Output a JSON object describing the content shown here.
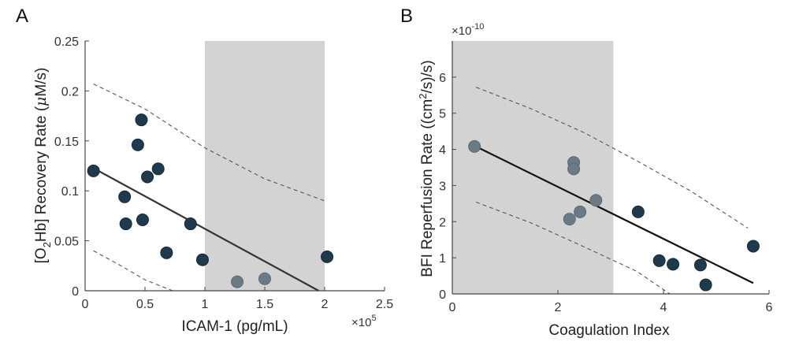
{
  "chart_data": [
    {
      "panel_label": "A",
      "type": "scatter",
      "xlabel": "ICAM-1 (pg/mL)",
      "ylabel": "[O2Hb] Recovery Rate (μM/s)",
      "ylabel_parts": {
        "pre": "[O",
        "sub": "2",
        "post": "Hb] Recovery Rate (",
        "mu": "μ",
        "unit": "M/s)"
      },
      "x_scale": {
        "base": "×10",
        "exp": "5"
      },
      "xlim": [
        0,
        2.5
      ],
      "ylim": [
        0,
        0.25
      ],
      "xticks": [
        "0",
        "0.5",
        "1",
        "1.5",
        "2",
        "2.5"
      ],
      "yticks": [
        "0",
        "0.05",
        "0.1",
        "0.15",
        "0.2",
        "0.25"
      ],
      "shaded_region": [
        1.0,
        2.0
      ],
      "points": [
        {
          "x": 0.07,
          "y": 0.12
        },
        {
          "x": 0.33,
          "y": 0.094
        },
        {
          "x": 0.34,
          "y": 0.067
        },
        {
          "x": 0.44,
          "y": 0.146
        },
        {
          "x": 0.47,
          "y": 0.171
        },
        {
          "x": 0.48,
          "y": 0.071
        },
        {
          "x": 0.52,
          "y": 0.114
        },
        {
          "x": 0.61,
          "y": 0.122
        },
        {
          "x": 0.68,
          "y": 0.038
        },
        {
          "x": 0.88,
          "y": 0.067
        },
        {
          "x": 0.98,
          "y": 0.031
        },
        {
          "x": 1.27,
          "y": 0.009
        },
        {
          "x": 1.5,
          "y": 0.012
        },
        {
          "x": 2.02,
          "y": 0.034
        }
      ],
      "fit_line": [
        [
          0.05,
          0.124
        ],
        [
          1.95,
          0.0
        ]
      ],
      "ci_upper": [
        [
          0.07,
          0.207
        ],
        [
          0.5,
          0.182
        ],
        [
          1.0,
          0.143
        ],
        [
          1.5,
          0.112
        ],
        [
          2.0,
          0.09
        ]
      ],
      "ci_lower": [
        [
          0.07,
          0.04
        ],
        [
          0.3,
          0.025
        ],
        [
          0.5,
          0.011
        ],
        [
          0.73,
          0.0
        ]
      ],
      "grid": false,
      "colors": {
        "point": "#1f3a4d",
        "point_in_shade": "#6b7b85",
        "shade": "#d3d3d3",
        "fit": "#333333",
        "ci": "#555555"
      }
    },
    {
      "panel_label": "B",
      "type": "scatter",
      "xlabel": "Coagulation Index",
      "ylabel": "BFI Reperfusion Rate ((cm²/s)/s)",
      "ylabel_parts": {
        "pre": "BFI Reperfusion Rate ((cm",
        "sup": "2",
        "post": "/s)/s)"
      },
      "y_scale": {
        "base": "×10",
        "exp": "-10"
      },
      "xlim": [
        0,
        6
      ],
      "ylim": [
        0,
        7
      ],
      "xticks": [
        "0",
        "2",
        "4",
        "6"
      ],
      "yticks": [
        "0",
        "1",
        "2",
        "3",
        "4",
        "5",
        "6"
      ],
      "shaded_region": [
        0,
        3.05
      ],
      "points": [
        {
          "x": 0.42,
          "y": 4.08
        },
        {
          "x": 2.22,
          "y": 2.07
        },
        {
          "x": 2.3,
          "y": 3.64
        },
        {
          "x": 2.3,
          "y": 3.46
        },
        {
          "x": 2.42,
          "y": 2.27
        },
        {
          "x": 2.72,
          "y": 2.59
        },
        {
          "x": 3.52,
          "y": 2.27
        },
        {
          "x": 3.92,
          "y": 0.92
        },
        {
          "x": 4.18,
          "y": 0.82
        },
        {
          "x": 4.7,
          "y": 0.8
        },
        {
          "x": 4.8,
          "y": 0.25
        },
        {
          "x": 5.7,
          "y": 1.32
        }
      ],
      "fit_line": [
        [
          0.42,
          4.1
        ],
        [
          5.7,
          0.3
        ]
      ],
      "ci_upper": [
        [
          0.45,
          5.72
        ],
        [
          1.5,
          5.12
        ],
        [
          2.5,
          4.46
        ],
        [
          3.5,
          3.68
        ],
        [
          4.5,
          2.86
        ],
        [
          5.6,
          1.82
        ]
      ],
      "ci_lower": [
        [
          0.45,
          2.54
        ],
        [
          1.5,
          1.96
        ],
        [
          2.5,
          1.3
        ],
        [
          3.5,
          0.62
        ],
        [
          4.12,
          0.0
        ]
      ],
      "grid": false,
      "colors": {
        "point": "#1f3a4d",
        "point_in_shade": "#6b7b85",
        "shade": "#d3d3d3",
        "fit": "#111111",
        "ci": "#555555"
      }
    }
  ]
}
